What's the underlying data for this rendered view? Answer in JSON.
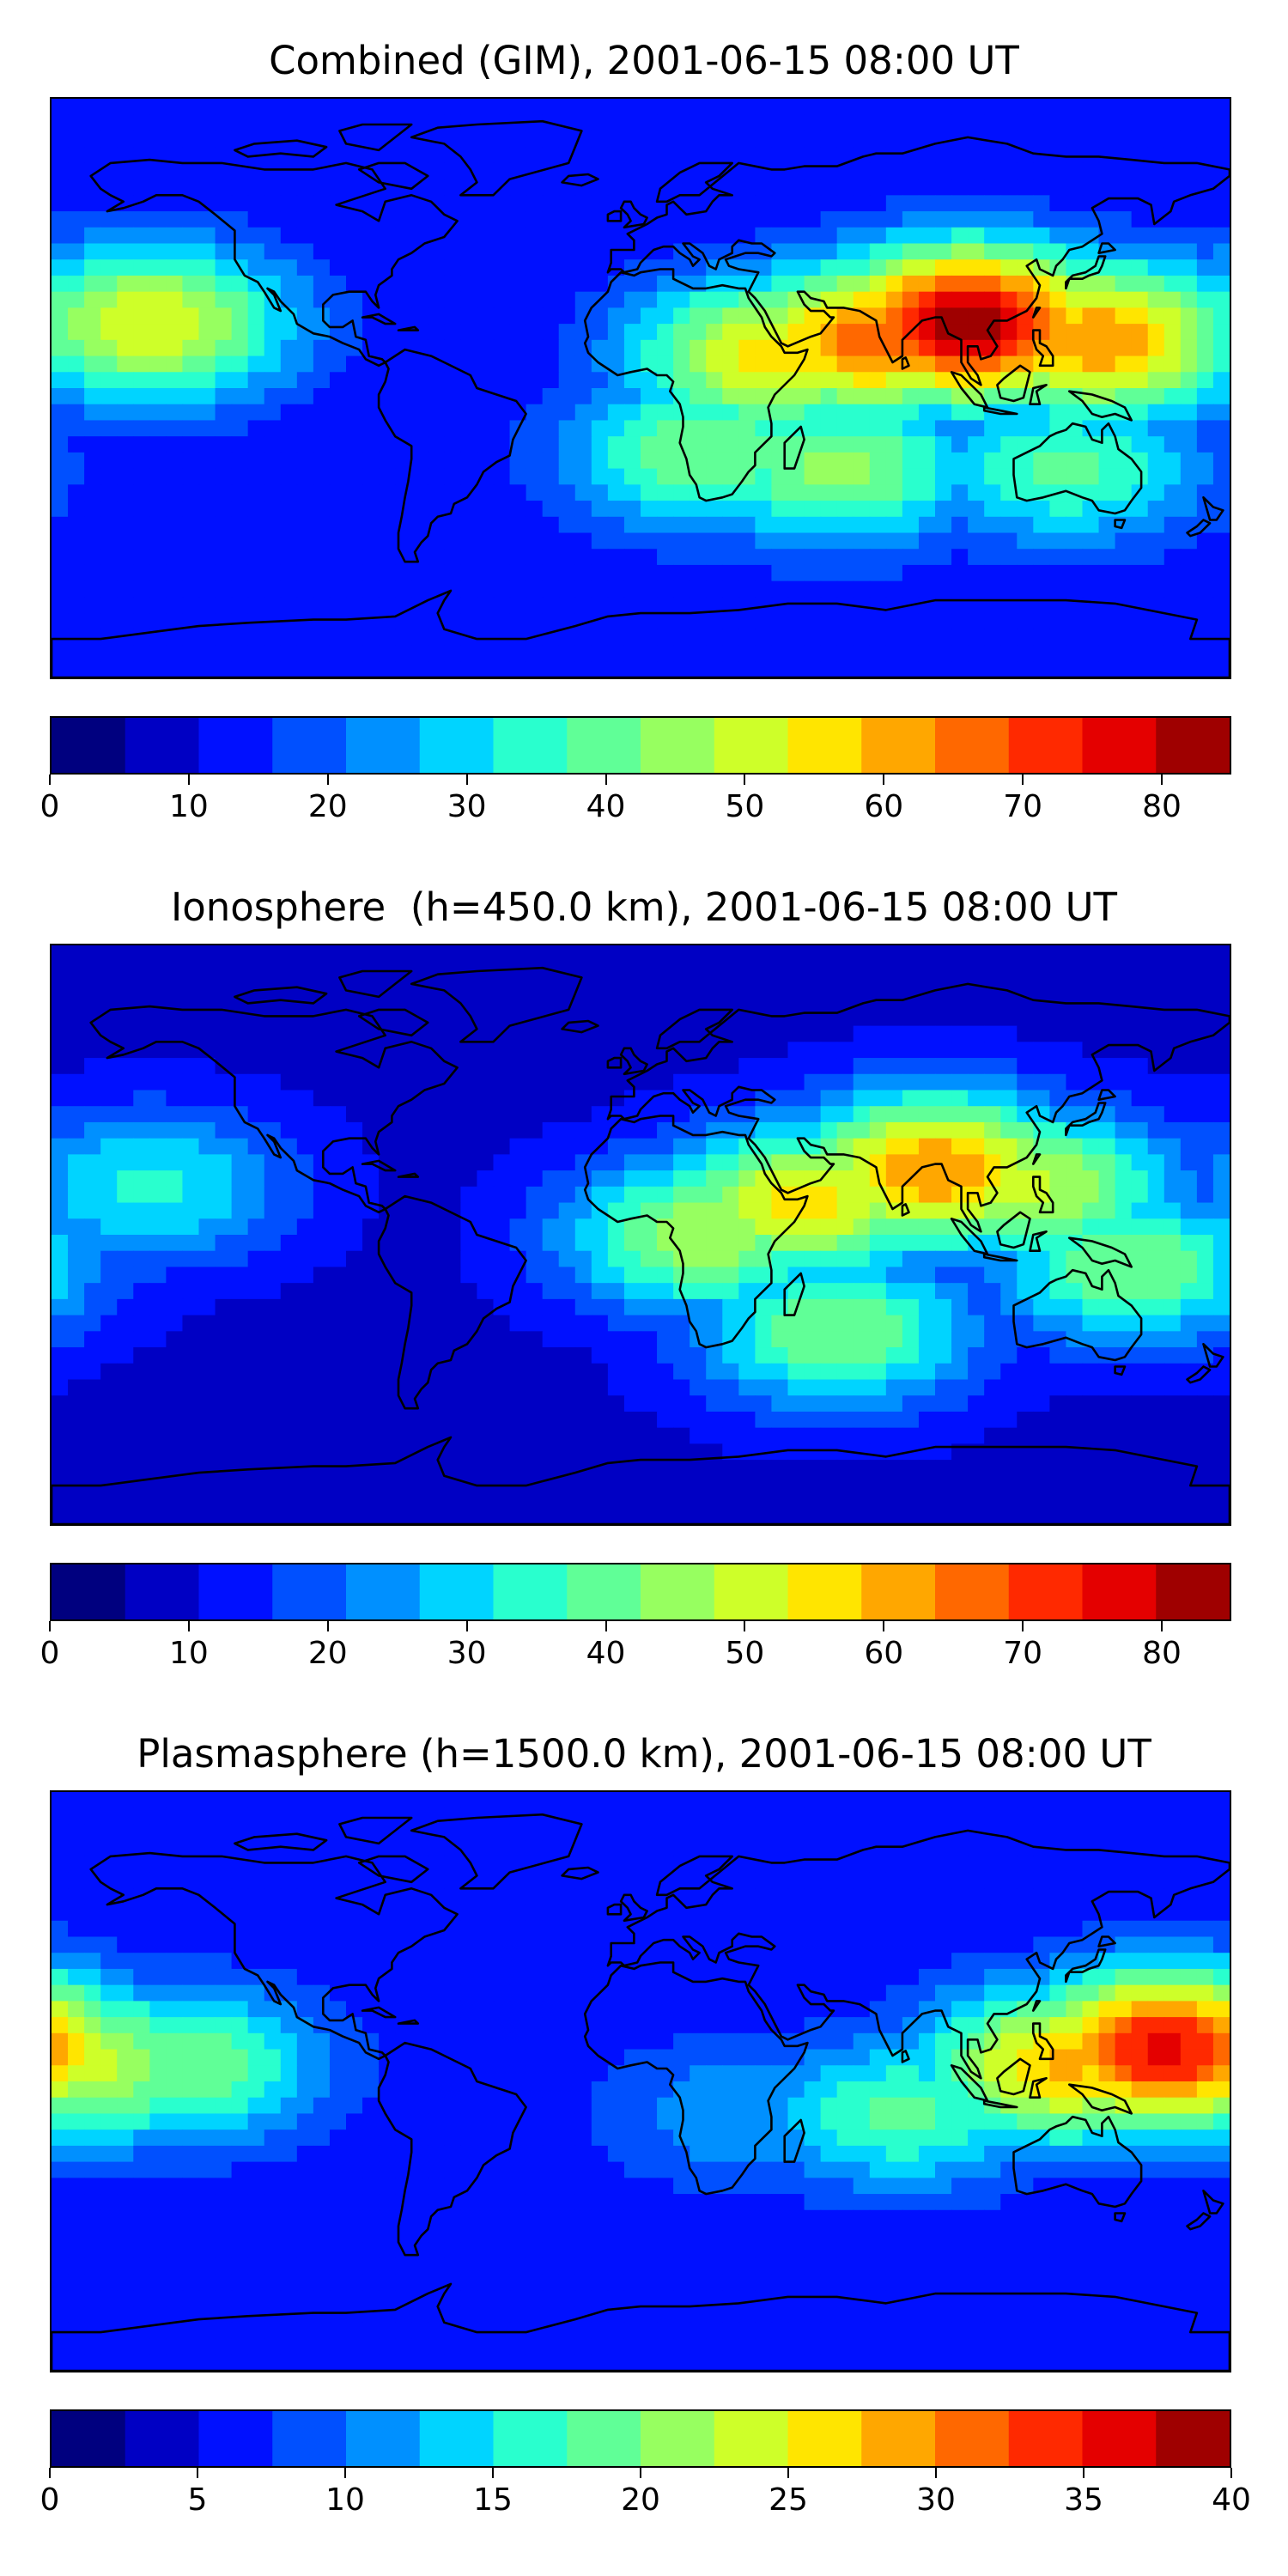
{
  "panels": [
    {
      "title": "Combined (GIM), 2001-06-15 08:00 UT",
      "colorbar": {
        "min": 0,
        "max": 85,
        "step": 5,
        "ticks": [
          "0",
          "10",
          "20",
          "30",
          "40",
          "50",
          "60",
          "70",
          "80"
        ],
        "tick_values": [
          0,
          10,
          20,
          30,
          40,
          50,
          60,
          70,
          80
        ]
      },
      "blobs": [
        {
          "lon": 100,
          "lat": 20,
          "value": 78
        },
        {
          "lon": 70,
          "lat": 15,
          "value": 62
        },
        {
          "lon": 40,
          "lat": 10,
          "value": 52
        },
        {
          "lon": 140,
          "lat": 15,
          "value": 60
        },
        {
          "lon": -150,
          "lat": 20,
          "value": 50
        },
        {
          "lon": 60,
          "lat": -25,
          "value": 42
        },
        {
          "lon": 130,
          "lat": -25,
          "value": 36
        },
        {
          "lon": 20,
          "lat": -20,
          "value": 40
        }
      ],
      "background_value": 10
    },
    {
      "title": "Ionosphere  (h=450.0 km), 2001-06-15 08:00 UT",
      "colorbar": {
        "min": 0,
        "max": 85,
        "step": 5,
        "ticks": [
          "0",
          "10",
          "20",
          "30",
          "40",
          "50",
          "60",
          "70",
          "80"
        ],
        "tick_values": [
          0,
          10,
          20,
          30,
          40,
          50,
          60,
          70,
          80
        ]
      },
      "blobs": [
        {
          "lon": 90,
          "lat": 20,
          "value": 60
        },
        {
          "lon": 50,
          "lat": 10,
          "value": 52
        },
        {
          "lon": 20,
          "lat": 0,
          "value": 45
        },
        {
          "lon": 120,
          "lat": 15,
          "value": 46
        },
        {
          "lon": -150,
          "lat": 15,
          "value": 32
        },
        {
          "lon": 60,
          "lat": -30,
          "value": 40
        },
        {
          "lon": 150,
          "lat": -10,
          "value": 40
        }
      ],
      "background_value": 8
    },
    {
      "title": "Plasmasphere (h=1500.0 km), 2001-06-15 08:00 UT",
      "colorbar": {
        "min": 0,
        "max": 40,
        "step": 2.5,
        "ticks": [
          "0",
          "5",
          "10",
          "15",
          "20",
          "25",
          "30",
          "35",
          "40"
        ],
        "tick_values": [
          0,
          5,
          10,
          15,
          20,
          25,
          30,
          35,
          40
        ]
      },
      "blobs": [
        {
          "lon": 160,
          "lat": 10,
          "value": 36
        },
        {
          "lon": 130,
          "lat": 5,
          "value": 28
        },
        {
          "lon": -170,
          "lat": 5,
          "value": 24
        },
        {
          "lon": -140,
          "lat": 5,
          "value": 20
        },
        {
          "lon": 80,
          "lat": -10,
          "value": 18
        },
        {
          "lon": 30,
          "lat": -10,
          "value": 12
        }
      ],
      "background_value": 5
    }
  ],
  "colormap": [
    "#00007f",
    "#0000c4",
    "#0010ff",
    "#0050ff",
    "#0090ff",
    "#00d4ff",
    "#29ffce",
    "#60ff97",
    "#97ff60",
    "#ceff29",
    "#ffe500",
    "#ffa700",
    "#ff6800",
    "#ff2900",
    "#e40000",
    "#9f0000"
  ],
  "coastline_color": "#000000"
}
